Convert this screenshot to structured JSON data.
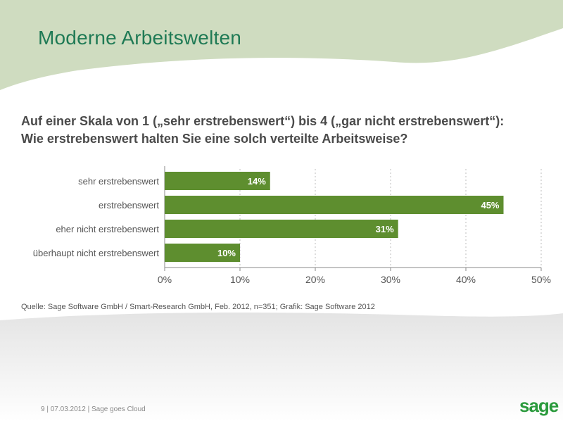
{
  "title": "Moderne Arbeitswelten",
  "question": {
    "line1": "Auf einer Skala von 1 („sehr erstrebenswert“) bis 4 („gar nicht erstrebenswert“):",
    "line2": "Wie erstrebenswert halten Sie eine solch verteilte Arbeitsweise?"
  },
  "source": "Quelle: Sage Software GmbH / Smart-Research GmbH, Feb. 2012, n=351; Grafik: Sage Software 2012",
  "footer": {
    "page": "9",
    "date": "07.03.2012",
    "topic": "Sage goes Cloud"
  },
  "logo": "sage",
  "colors": {
    "bar": "#5e8e2f",
    "title": "#1f7a55",
    "wave_top": "#cfdcc0",
    "wave_bottom": "#e6e6e6"
  },
  "chart_data": {
    "type": "bar",
    "orientation": "horizontal",
    "categories": [
      "sehr erstrebenswert",
      "erstrebenswert",
      "eher nicht erstrebenswert",
      "überhaupt nicht erstrebenswert"
    ],
    "values": [
      14,
      45,
      31,
      10
    ],
    "data_labels": [
      "14%",
      "45%",
      "31%",
      "10%"
    ],
    "xlim": [
      0,
      50
    ],
    "xticks": [
      "0%",
      "10%",
      "20%",
      "30%",
      "40%",
      "50%"
    ],
    "xlabel": "",
    "ylabel": "",
    "grid": true
  }
}
